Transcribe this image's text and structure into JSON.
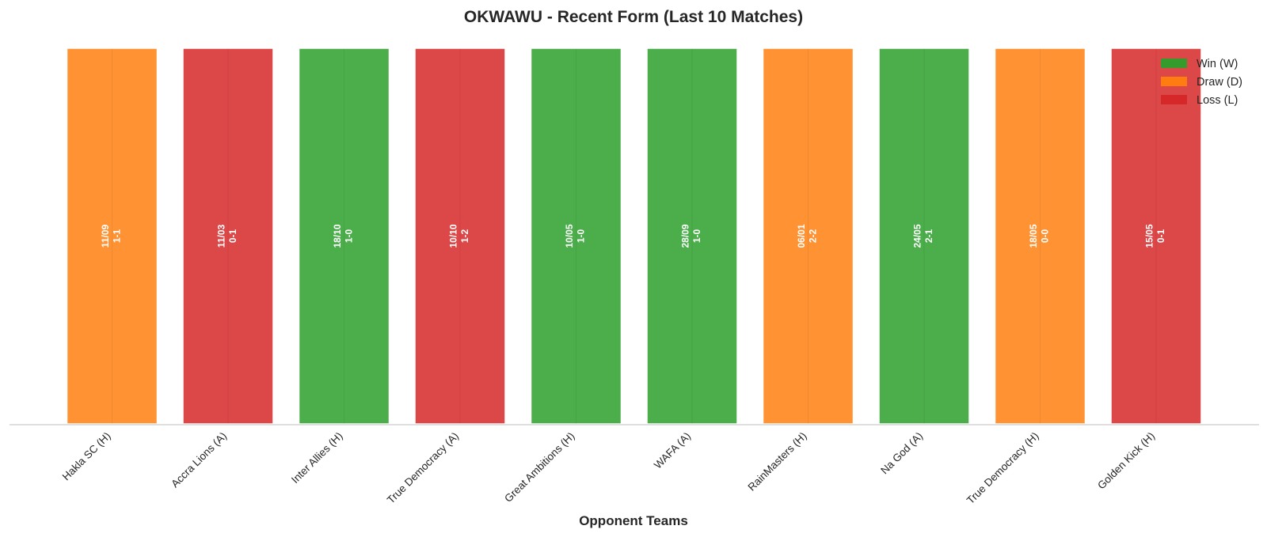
{
  "chart_data": {
    "type": "bar",
    "title": "OKWAWU - Recent Form (Last 10 Matches)",
    "xlabel": "Opponent Teams",
    "ylabel": "",
    "ylim": [
      0,
      1
    ],
    "grid": false,
    "legend_position": "top-right",
    "categories": [
      "Hakla SC (H)",
      "Accra Lions (A)",
      "Inter Allies (H)",
      "True Democracy (A)",
      "Great Ambitions (H)",
      "WAFA (A)",
      "RainMasters (H)",
      "Na God (A)",
      "True Democracy (H)",
      "Golden Kick (H)"
    ],
    "values": [
      1,
      1,
      1,
      1,
      1,
      1,
      1,
      1,
      1,
      1
    ],
    "results": [
      "D",
      "L",
      "W",
      "L",
      "W",
      "W",
      "D",
      "W",
      "D",
      "L"
    ],
    "dates": [
      "11/09",
      "11/03",
      "18/10",
      "10/10",
      "10/05",
      "28/09",
      "06/01",
      "24/05",
      "18/05",
      "15/05"
    ],
    "scores": [
      "1-1",
      "0-1",
      "1-0",
      "1-2",
      "1-0",
      "1-0",
      "2-2",
      "2-1",
      "0-0",
      "0-1"
    ],
    "legend": [
      {
        "key": "W",
        "label": "Win (W)",
        "color": "#2ca02c"
      },
      {
        "key": "D",
        "label": "Draw (D)",
        "color": "#ff7f0e"
      },
      {
        "key": "L",
        "label": "Loss (L)",
        "color": "#d62728"
      }
    ]
  }
}
